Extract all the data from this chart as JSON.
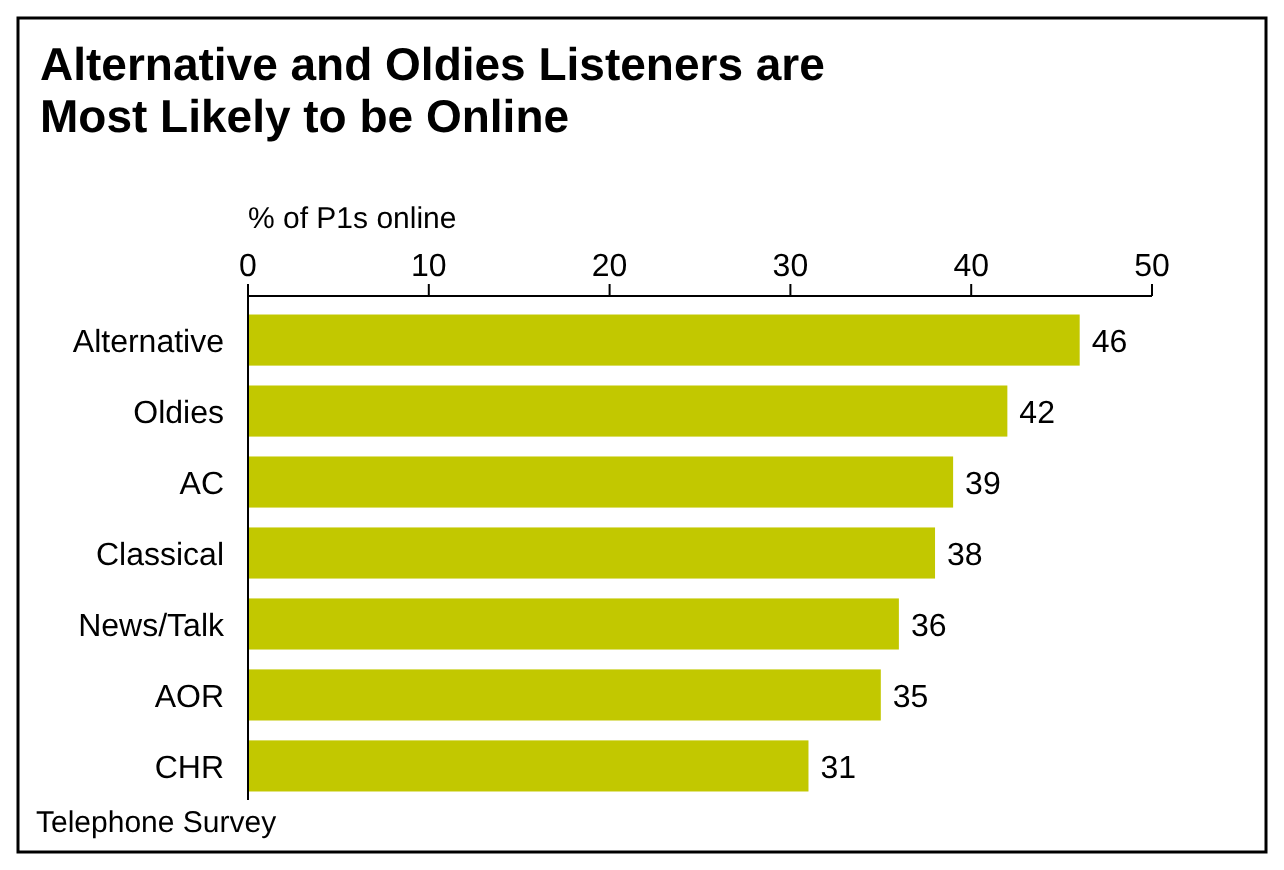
{
  "chart_data": {
    "type": "bar",
    "orientation": "horizontal",
    "title": "Alternative and Oldies Listeners are Most Likely to be Online",
    "xlabel": "% of P1s online",
    "categories": [
      "Alternative",
      "Oldies",
      "AC",
      "Classical",
      "News/Talk",
      "AOR",
      "CHR"
    ],
    "values": [
      46,
      42,
      39,
      38,
      36,
      35,
      31
    ],
    "color": "#c2c800",
    "data_labels": true,
    "xlim": [
      0,
      50
    ],
    "xticks": [
      0,
      10,
      20,
      30,
      40,
      50
    ],
    "grid": false,
    "annotations": [
      "Telephone Survey"
    ]
  }
}
